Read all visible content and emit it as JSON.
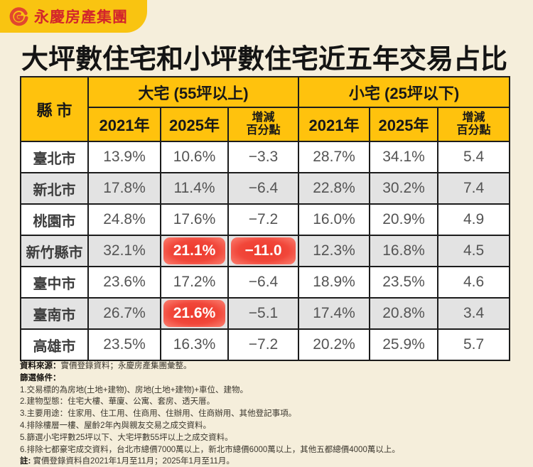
{
  "colors": {
    "background": "#F5EEDB",
    "header_yellow": "#FFC20D",
    "logo_yellow": "#F9C411",
    "logo_red": "#D3262B",
    "highlight_red": "#F1473A",
    "row_gray": "#E3E3E3",
    "border_black": "#1C1C1C"
  },
  "logo": {
    "text": "永慶房產集團"
  },
  "title": {
    "part1": "大坪數住宅和小坪數住宅",
    "part2": "近五年交易占比"
  },
  "table": {
    "corner_header": "縣 市",
    "groups": [
      {
        "label": "大宅 (55坪以上)"
      },
      {
        "label": "小宅 (25坪以下)"
      }
    ],
    "sub_headers": [
      "2021年",
      "2025年",
      "增減\n百分點",
      "2021年",
      "2025年",
      "增減\n百分點"
    ],
    "rows": [
      {
        "city": "臺北市",
        "values": [
          "13.9%",
          "10.6%",
          "−3.3",
          "28.7%",
          "34.1%",
          "5.4"
        ],
        "highlight": []
      },
      {
        "city": "新北市",
        "values": [
          "17.8%",
          "11.4%",
          "−6.4",
          "22.8%",
          "30.2%",
          "7.4"
        ],
        "highlight": []
      },
      {
        "city": "桃園市",
        "values": [
          "24.8%",
          "17.6%",
          "−7.2",
          "16.0%",
          "20.9%",
          "4.9"
        ],
        "highlight": []
      },
      {
        "city": "新竹縣市",
        "values": [
          "32.1%",
          "21.1%",
          "−11.0",
          "12.3%",
          "16.8%",
          "4.5"
        ],
        "highlight": [
          1,
          2
        ]
      },
      {
        "city": "臺中市",
        "values": [
          "23.6%",
          "17.2%",
          "−6.4",
          "18.9%",
          "23.5%",
          "4.6"
        ],
        "highlight": []
      },
      {
        "city": "臺南市",
        "values": [
          "26.7%",
          "21.6%",
          "−5.1",
          "17.4%",
          "20.8%",
          "3.4"
        ],
        "highlight": [
          1
        ]
      },
      {
        "city": "高雄市",
        "values": [
          "23.5%",
          "16.3%",
          "−7.2",
          "20.2%",
          "25.9%",
          "5.7"
        ],
        "highlight": []
      }
    ]
  },
  "chart_data": {
    "type": "table",
    "title": "大坪數住宅和小坪數住宅近五年交易占比",
    "column_groups": [
      "縣市",
      "大宅 (55坪以上)",
      "小宅 (25坪以下)"
    ],
    "columns": [
      "縣市",
      "大宅 2021年",
      "大宅 2025年",
      "大宅 增減百分點",
      "小宅 2021年",
      "小宅 2025年",
      "小宅 增減百分點"
    ],
    "rows": [
      [
        "臺北市",
        13.9,
        10.6,
        -3.3,
        28.7,
        34.1,
        5.4
      ],
      [
        "新北市",
        17.8,
        11.4,
        -6.4,
        22.8,
        30.2,
        7.4
      ],
      [
        "桃園市",
        24.8,
        17.6,
        -7.2,
        16.0,
        20.9,
        4.9
      ],
      [
        "新竹縣市",
        32.1,
        21.1,
        -11.0,
        12.3,
        16.8,
        4.5
      ],
      [
        "臺中市",
        23.6,
        17.2,
        -6.4,
        18.9,
        23.5,
        4.6
      ],
      [
        "臺南市",
        26.7,
        21.6,
        -5.1,
        17.4,
        20.8,
        3.4
      ],
      [
        "高雄市",
        23.5,
        16.3,
        -7.2,
        20.2,
        25.9,
        5.7
      ]
    ],
    "units": "percent of transactions",
    "highlighted_cells": [
      {
        "row": "新竹縣市",
        "columns": [
          "大宅 2025年",
          "大宅 增減百分點"
        ]
      },
      {
        "row": "臺南市",
        "columns": [
          "大宅 2025年"
        ]
      }
    ]
  },
  "footnotes": {
    "source_label": "資料來源：",
    "source_text": "實價登錄資料；永慶房產集團彙整。",
    "filter_label": "篩選條件：",
    "items": [
      "1.交易標的為房地(土地+建物)、房地(土地+建物)+車位、建物。",
      "2.建物型態：住宅大樓、華廈、公寓、套房、透天厝。",
      "3.主要用途：住家用、住工用、住商用、住辦用、住商辦用、其他登記事項。",
      "4.排除樓層一樓、屋齡2年內與親友交易之成交資料。",
      "5.篩選小宅坪數25坪以下、大宅坪數55坪以上之成交資料。",
      "6.排除七都豪宅成交資料，台北市總價7000萬以上，新北市總價6000萬以上，其他五都總價4000萬以上。"
    ],
    "note_label": "註:",
    "note_text": "實價登錄資料自2021年1月至11月；2025年1月至11月。"
  }
}
